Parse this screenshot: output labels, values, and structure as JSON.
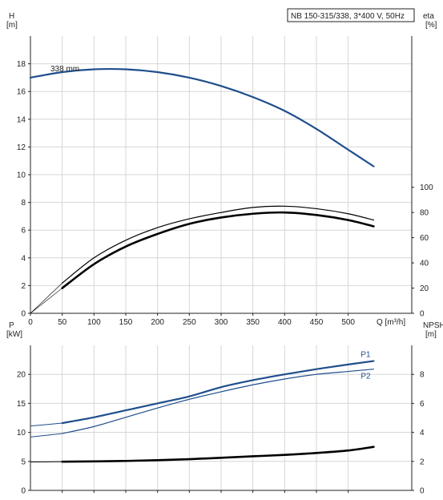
{
  "chart_data": [
    {
      "type": "line",
      "title": "NB 150-315/338, 3*400 V, 50Hz",
      "xlabel": "Q [m³/h]",
      "x_unit": "Q [m³/h]",
      "xlim": [
        0,
        600
      ],
      "x_ticks": [
        "0",
        "50",
        "100",
        "150",
        "200",
        "250",
        "300",
        "350",
        "400",
        "450",
        "500"
      ],
      "left_axis": {
        "label_top": "H",
        "label_unit": "[m]",
        "ylim": [
          0,
          20
        ],
        "ticks": [
          "0",
          "2",
          "4",
          "6",
          "8",
          "10",
          "12",
          "14",
          "16",
          "18"
        ]
      },
      "right_axis": {
        "label_top": "eta",
        "label_unit": "[%]",
        "ylim": [
          0,
          220
        ],
        "ticks": [
          "0",
          "20",
          "40",
          "60",
          "80",
          "100"
        ]
      },
      "annotations": [
        "338 mm"
      ],
      "grid": true,
      "series": [
        {
          "name": "338 mm",
          "axis": "left",
          "color": "#1f4e8c",
          "x": [
            0,
            50,
            100,
            150,
            200,
            250,
            300,
            350,
            400,
            450,
            500,
            540
          ],
          "y": [
            17.0,
            17.4,
            17.6,
            17.6,
            17.4,
            17.0,
            16.4,
            15.6,
            14.6,
            13.3,
            11.8,
            10.6
          ]
        },
        {
          "axis": "right",
          "color": "#000000",
          "width": 1.2,
          "x": [
            0,
            50,
            100,
            150,
            200,
            250,
            300,
            350,
            400,
            450,
            500,
            540
          ],
          "y": [
            0,
            24,
            44,
            58,
            68,
            75,
            80,
            84,
            85,
            83,
            79,
            74
          ]
        },
        {
          "axis": "right",
          "color": "#000000",
          "width": 2.6,
          "x": [
            0,
            50,
            100,
            150,
            200,
            250,
            300,
            350,
            400,
            450,
            500,
            540
          ],
          "y": [
            0,
            20,
            39,
            53,
            63,
            71,
            76,
            79,
            80,
            78,
            74,
            69
          ]
        }
      ]
    },
    {
      "type": "line",
      "xlim": [
        0,
        600
      ],
      "left_axis": {
        "label_top": "P",
        "label_unit": "[kW]",
        "ylim": [
          0,
          25
        ],
        "ticks": [
          "0",
          "5",
          "10",
          "15",
          "20"
        ]
      },
      "right_axis": {
        "label_top": "NPSH",
        "label_unit": "[m]",
        "ylim": [
          0,
          10
        ],
        "ticks": [
          "0",
          "2",
          "4",
          "6",
          "8"
        ]
      },
      "grid": true,
      "series": [
        {
          "name": "P1",
          "axis": "left",
          "color": "#1f4e8c",
          "width": 2.2,
          "x": [
            0,
            50,
            100,
            150,
            200,
            250,
            300,
            350,
            400,
            450,
            500,
            540
          ],
          "y": [
            11.1,
            11.6,
            12.6,
            13.8,
            15.0,
            16.2,
            17.8,
            19.0,
            20.0,
            20.9,
            21.7,
            22.3
          ]
        },
        {
          "name": "P2",
          "axis": "left",
          "color": "#1f4e8c",
          "width": 1.2,
          "x": [
            0,
            50,
            100,
            150,
            200,
            250,
            300,
            350,
            400,
            450,
            500,
            540
          ],
          "y": [
            9.2,
            9.8,
            11.0,
            12.6,
            14.2,
            15.7,
            17.0,
            18.2,
            19.2,
            20.0,
            20.5,
            20.9
          ]
        },
        {
          "axis": "right",
          "color": "#000000",
          "width": 2.6,
          "x": [
            0,
            50,
            100,
            150,
            200,
            250,
            300,
            350,
            400,
            450,
            500,
            540
          ],
          "y": [
            1.96,
            1.98,
            2.0,
            2.03,
            2.08,
            2.15,
            2.25,
            2.35,
            2.45,
            2.58,
            2.75,
            3.0
          ]
        }
      ]
    }
  ]
}
